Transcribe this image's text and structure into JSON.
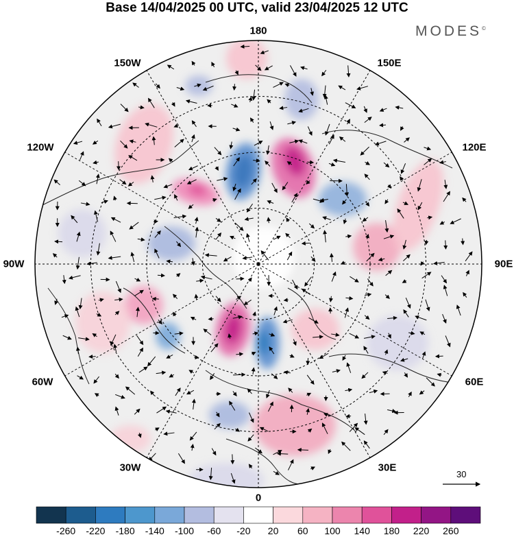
{
  "title": "Base 14/04/2025 00 UTC, valid 23/04/2025 12 UTC",
  "brand": "MODES",
  "brand_mark": "©",
  "longitude_labels": [
    "180",
    "150E",
    "120E",
    "90E",
    "60E",
    "30E",
    "0",
    "30W",
    "60W",
    "90W",
    "120W",
    "150W"
  ],
  "reference_vector": {
    "label": "30"
  },
  "colorbar": {
    "labels": [
      "-260",
      "-220",
      "-180",
      "-140",
      "-100",
      "-60",
      "-20",
      "20",
      "60",
      "100",
      "140",
      "180",
      "220",
      "260"
    ],
    "colors": [
      "#12344f",
      "#1d5c8e",
      "#2e7bbf",
      "#4d97cd",
      "#7aa8d9",
      "#b3bde0",
      "#e4e2ef",
      "#ffffff",
      "#fbd9dd",
      "#f5b3c3",
      "#ec85ad",
      "#e0529a",
      "#c2208a",
      "#931585",
      "#5e0e7a"
    ]
  },
  "map": {
    "projection": "north polar stereographic",
    "background": "#efefef",
    "coastline_color": "#222222",
    "positive_color": "#f5b3c3",
    "negative_color": "#a9b8de"
  }
}
